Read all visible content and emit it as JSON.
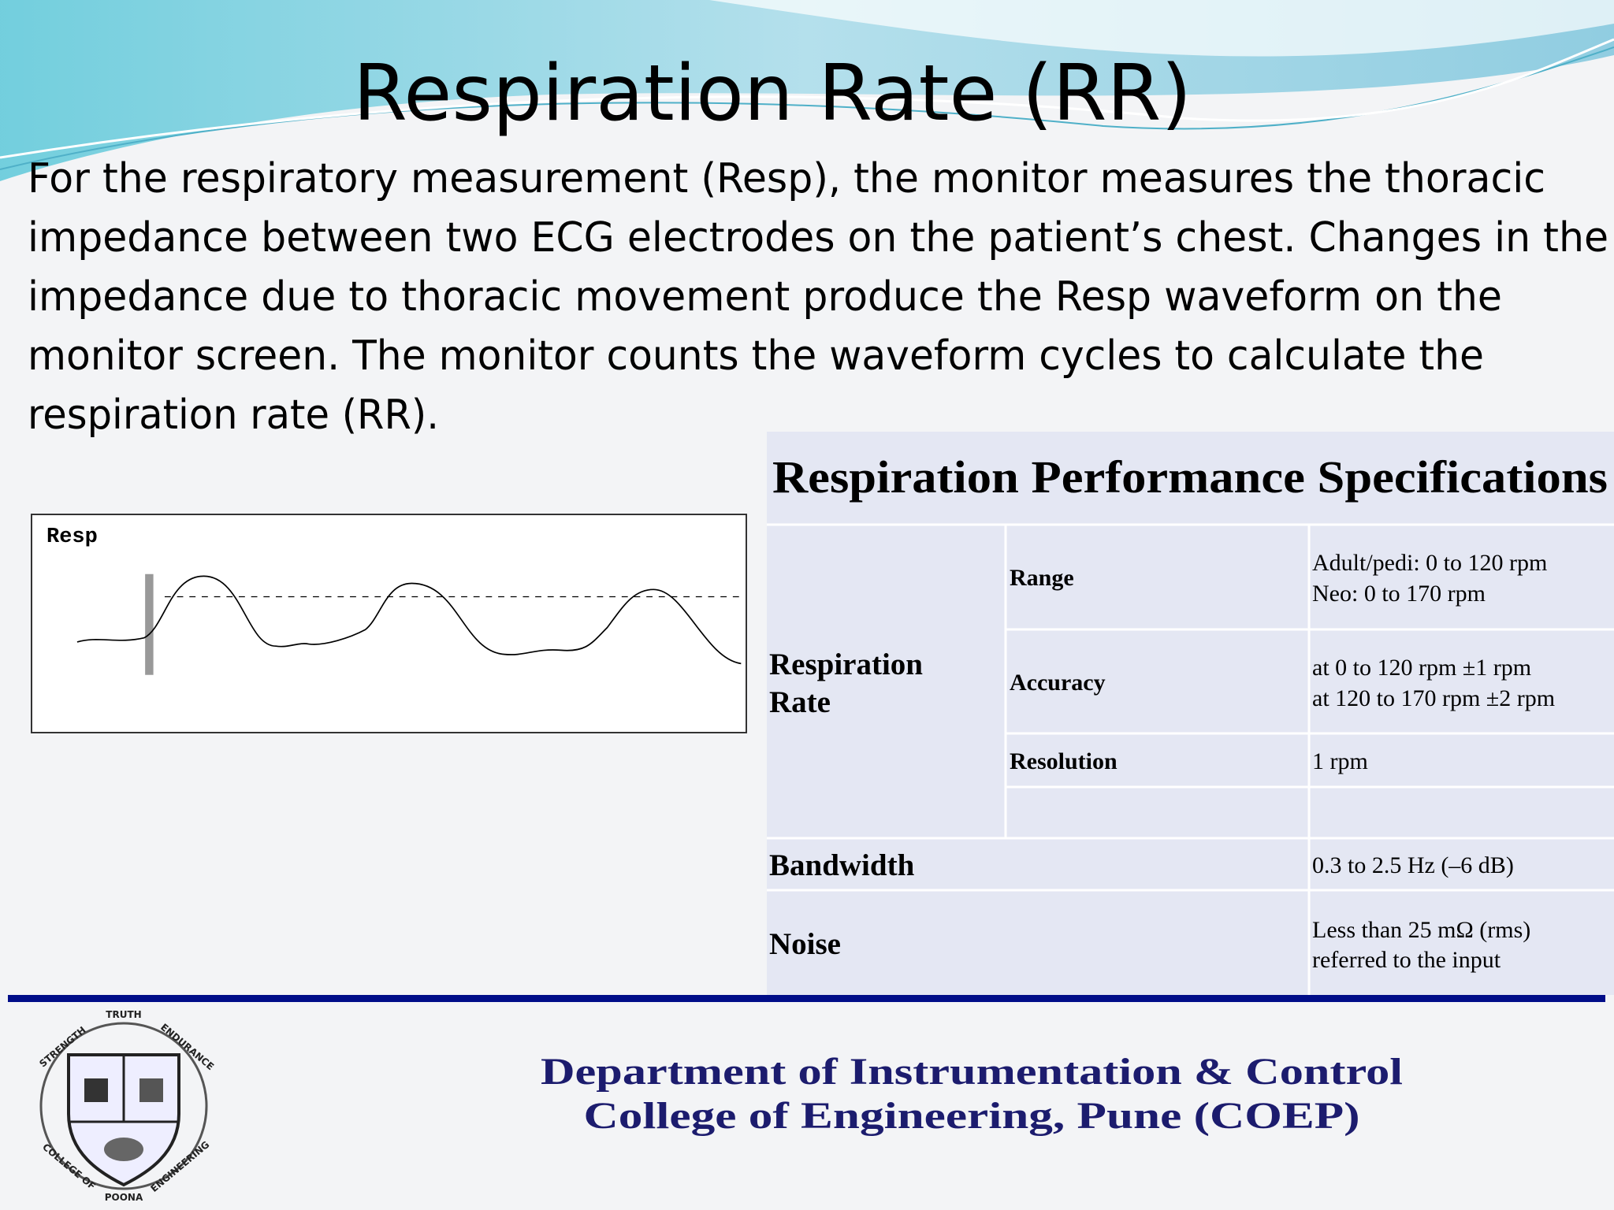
{
  "title": "Respiration Rate (RR)",
  "body": {
    "lines": [
      "For the respiratory measurement (Resp), the monitor measures the thoracic",
      "impedance between two ECG electrodes on the  patient’s chest. Changes in the",
      "impedance due to thoracic movement produce the Resp waveform on the",
      "monitor screen. The monitor counts the waveform cycles to calculate the",
      "respiration rate (RR)."
    ]
  },
  "figure": {
    "label": "Resp"
  },
  "table": {
    "title": "Respiration Performance Specifications",
    "group": [
      "Respiration",
      "Rate"
    ],
    "rows": [
      {
        "parameter": "Range",
        "value": [
          "Adult/pedi: 0 to 120 rpm",
          "Neo: 0 to 170 rpm"
        ]
      },
      {
        "parameter": "Accuracy",
        "value": [
          "at 0 to 120 rpm ±1 rpm",
          "at 120 to 170 rpm ±2 rpm"
        ]
      },
      {
        "parameter": "Resolution",
        "value": [
          "1 rpm"
        ]
      },
      {
        "parameter": "Bandwidth",
        "value": [
          "0.3 to 2.5 Hz (–6 dB)"
        ]
      },
      {
        "parameter": "Noise",
        "value": [
          "Less than 25 mΩ (rms)",
          "referred to the input"
        ]
      }
    ]
  },
  "footer": {
    "lines": [
      "Department of Instrumentation & Control",
      "College of Engineering, Pune (COEP)"
    ]
  },
  "logo": {
    "texts": [
      "TRUTH",
      "STRENGTH",
      "ENDURANCE",
      "COLLEGE OF",
      "ENGINEERING",
      "POONA"
    ]
  }
}
